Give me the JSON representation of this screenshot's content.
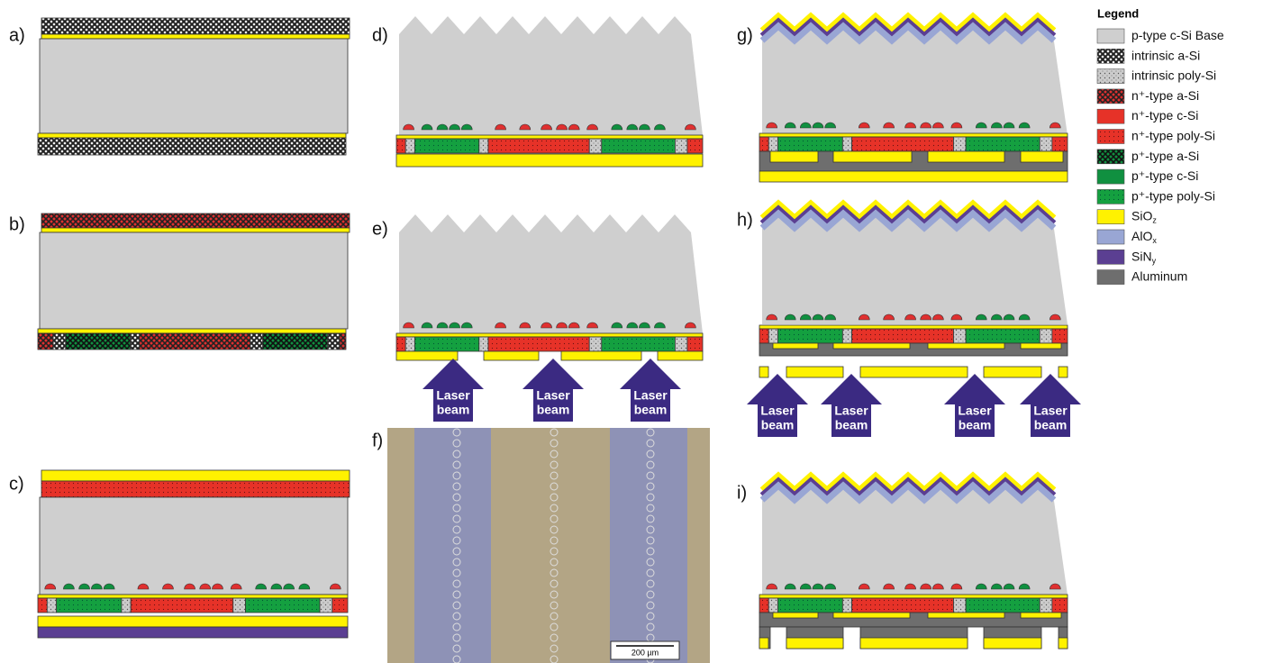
{
  "panels": {
    "a": "a)",
    "b": "b)",
    "c": "c)",
    "d": "d)",
    "e": "e)",
    "f": "f)",
    "g": "g)",
    "h": "h)",
    "i": "i)"
  },
  "legend": {
    "title": "Legend",
    "items": [
      {
        "label": "p-type c-Si Base"
      },
      {
        "label": "intrinsic a-Si"
      },
      {
        "label": "intrinsic poly-Si"
      },
      {
        "label": "n⁺-type a-Si"
      },
      {
        "label": "n⁺-type c-Si"
      },
      {
        "label": "n⁺-type poly-Si"
      },
      {
        "label": "p⁺-type a-Si"
      },
      {
        "label": "p⁺-type c-Si"
      },
      {
        "label": "p⁺-type poly-Si"
      },
      {
        "label": "SiO",
        "sub": "z"
      },
      {
        "label": "AlO",
        "sub": "x"
      },
      {
        "label": "SiN",
        "sub": "y"
      },
      {
        "label": "Aluminum"
      }
    ]
  },
  "laser_beams": {
    "e": [
      [
        "Laser",
        "beam"
      ],
      [
        "Laser",
        "beam"
      ],
      [
        "Laser",
        "beam"
      ]
    ],
    "h": [
      [
        "Laser",
        "beam"
      ],
      [
        "Laser",
        "beam"
      ],
      [
        "Laser",
        "beam"
      ],
      [
        "Laser",
        "beam"
      ]
    ]
  },
  "scale_bar": "200 µm"
}
